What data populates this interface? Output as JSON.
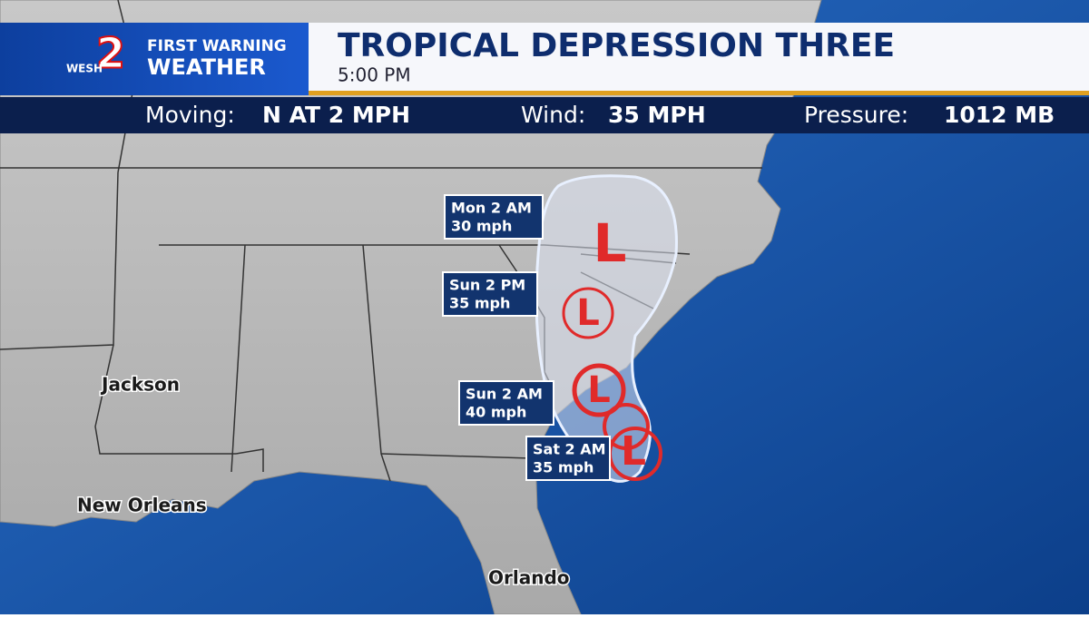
{
  "header": {
    "logo": {
      "station": "WESH",
      "channel": "2",
      "brand_top": "FIRST WARNING",
      "brand_bottom": "WEATHER"
    },
    "title": "TROPICAL DEPRESSION THREE",
    "time": "5:00 PM"
  },
  "stats": [
    {
      "label": "Moving:",
      "value": "N AT 2 MPH"
    },
    {
      "label": "Wind:",
      "value": "35 MPH"
    },
    {
      "label": "Pressure:",
      "value": "1012 MB"
    }
  ],
  "forecast_points": [
    {
      "time": "Mon 2 AM",
      "wind": "30 mph",
      "symbol": "L"
    },
    {
      "time": "Sun 2 PM",
      "wind": "35 mph",
      "symbol": "L"
    },
    {
      "time": "Sun 2 AM",
      "wind": "40 mph",
      "symbol": "L"
    },
    {
      "time": "Sat 2 AM",
      "wind": "35 mph",
      "symbol": "L"
    }
  ],
  "cities": [
    "Jackson",
    "New Orleans",
    "Orlando"
  ]
}
